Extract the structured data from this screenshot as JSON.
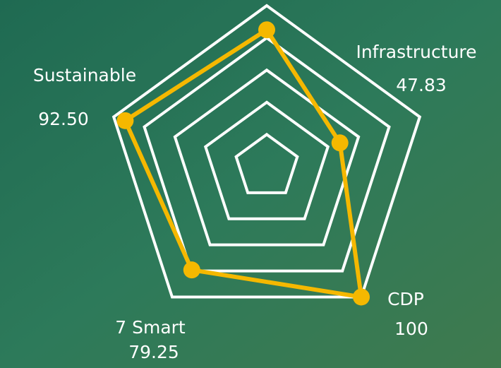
{
  "chart_data": {
    "type": "radar",
    "categories": [
      null,
      "Infrastructure",
      "CDP",
      "7 Smart",
      "Sustainable"
    ],
    "values": [
      85,
      47.83,
      100,
      79.25,
      92.5
    ],
    "value_labels": [
      null,
      "47.83",
      "100",
      "79.25",
      "92.50"
    ],
    "color": "#f5b800",
    "rlim": [
      0,
      100
    ],
    "rticks": [
      20,
      40,
      60,
      80,
      100
    ]
  }
}
